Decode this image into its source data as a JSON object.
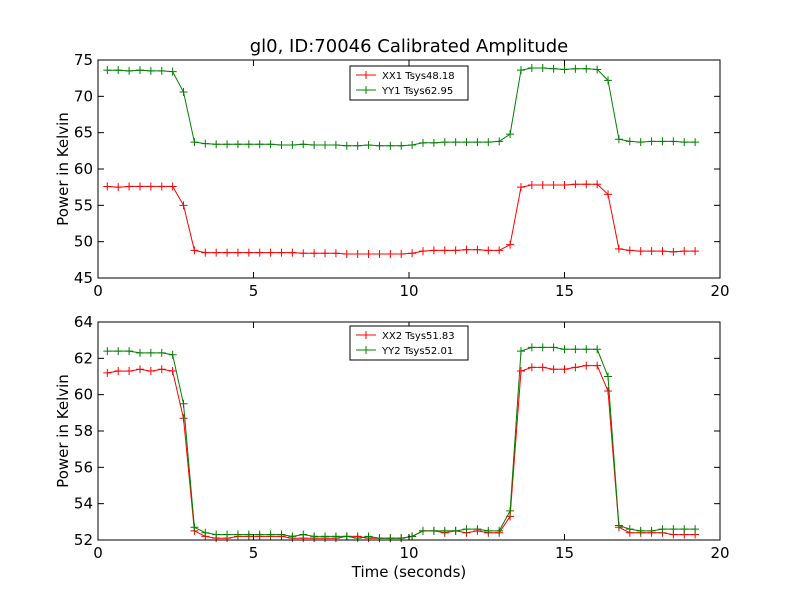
{
  "chart_data": [
    {
      "type": "line",
      "title": "gl0, ID:70046 Calibrated Amplitude",
      "xlabel": "",
      "ylabel": "Power in Kelvin",
      "xlim": [
        0,
        20
      ],
      "ylim": [
        45,
        75
      ],
      "xticks": [
        0,
        5,
        10,
        15,
        20
      ],
      "yticks": [
        45,
        50,
        55,
        60,
        65,
        70,
        75
      ],
      "legend_position": "top-center",
      "x": [
        0.3,
        0.65,
        1.0,
        1.35,
        1.7,
        2.05,
        2.4,
        2.75,
        3.1,
        3.45,
        3.8,
        4.15,
        4.5,
        4.85,
        5.2,
        5.55,
        5.9,
        6.25,
        6.6,
        6.95,
        7.3,
        7.65,
        8.0,
        8.35,
        8.7,
        9.05,
        9.4,
        9.75,
        10.1,
        10.45,
        10.8,
        11.15,
        11.5,
        11.85,
        12.2,
        12.55,
        12.9,
        13.25,
        13.6,
        13.95,
        14.3,
        14.65,
        15.0,
        15.35,
        15.7,
        16.05,
        16.4,
        16.75,
        17.1,
        17.45,
        17.8,
        18.15,
        18.5,
        18.85,
        19.2
      ],
      "series": [
        {
          "name": "XX1 Tsys48.18",
          "color": "#ff0000",
          "values": [
            57.6,
            57.5,
            57.6,
            57.6,
            57.6,
            57.6,
            57.6,
            55.0,
            48.8,
            48.5,
            48.5,
            48.5,
            48.5,
            48.5,
            48.5,
            48.5,
            48.5,
            48.5,
            48.4,
            48.4,
            48.4,
            48.4,
            48.3,
            48.3,
            48.3,
            48.3,
            48.3,
            48.3,
            48.4,
            48.7,
            48.8,
            48.8,
            48.8,
            48.9,
            48.9,
            48.8,
            48.8,
            49.6,
            57.5,
            57.8,
            57.8,
            57.8,
            57.8,
            57.9,
            57.9,
            57.9,
            56.5,
            49.0,
            48.8,
            48.7,
            48.7,
            48.7,
            48.6,
            48.7,
            48.7
          ]
        },
        {
          "name": "YY1 Tsys62.95",
          "color": "#008000",
          "values": [
            73.6,
            73.6,
            73.5,
            73.6,
            73.5,
            73.5,
            73.4,
            70.6,
            63.7,
            63.5,
            63.4,
            63.4,
            63.4,
            63.4,
            63.4,
            63.4,
            63.3,
            63.3,
            63.4,
            63.3,
            63.3,
            63.3,
            63.2,
            63.2,
            63.3,
            63.2,
            63.2,
            63.2,
            63.3,
            63.6,
            63.6,
            63.7,
            63.7,
            63.7,
            63.7,
            63.7,
            63.8,
            64.8,
            73.6,
            73.9,
            73.9,
            73.8,
            73.7,
            73.8,
            73.8,
            73.7,
            72.2,
            64.1,
            63.8,
            63.7,
            63.8,
            63.8,
            63.8,
            63.7,
            63.7
          ]
        }
      ]
    },
    {
      "type": "line",
      "title": "",
      "xlabel": "Time (seconds)",
      "ylabel": "Power in Kelvin",
      "xlim": [
        0,
        20
      ],
      "ylim": [
        52,
        64
      ],
      "xticks": [
        0,
        5,
        10,
        15,
        20
      ],
      "yticks": [
        52,
        54,
        56,
        58,
        60,
        62,
        64
      ],
      "legend_position": "top-center",
      "x": [
        0.3,
        0.65,
        1.0,
        1.35,
        1.7,
        2.05,
        2.4,
        2.75,
        3.1,
        3.45,
        3.8,
        4.15,
        4.5,
        4.85,
        5.2,
        5.55,
        5.9,
        6.25,
        6.6,
        6.95,
        7.3,
        7.65,
        8.0,
        8.35,
        8.7,
        9.05,
        9.4,
        9.75,
        10.1,
        10.45,
        10.8,
        11.15,
        11.5,
        11.85,
        12.2,
        12.55,
        12.9,
        13.25,
        13.6,
        13.95,
        14.3,
        14.65,
        15.0,
        15.35,
        15.7,
        16.05,
        16.4,
        16.75,
        17.1,
        17.45,
        17.8,
        18.15,
        18.5,
        18.85,
        19.2
      ],
      "series": [
        {
          "name": "XX2 Tsys51.83",
          "color": "#ff0000",
          "values": [
            61.2,
            61.3,
            61.3,
            61.4,
            61.3,
            61.4,
            61.3,
            58.7,
            52.5,
            52.2,
            52.1,
            52.1,
            52.2,
            52.2,
            52.2,
            52.2,
            52.2,
            52.1,
            52.1,
            52.1,
            52.1,
            52.1,
            52.2,
            52.2,
            52.1,
            52.1,
            52.1,
            52.1,
            52.2,
            52.5,
            52.5,
            52.4,
            52.5,
            52.4,
            52.5,
            52.4,
            52.4,
            53.3,
            61.3,
            61.5,
            61.5,
            61.4,
            61.4,
            61.5,
            61.6,
            61.6,
            60.2,
            52.7,
            52.4,
            52.4,
            52.4,
            52.4,
            52.3,
            52.3,
            52.3
          ]
        },
        {
          "name": "YY2 Tsys52.01",
          "color": "#008000",
          "values": [
            62.4,
            62.4,
            62.4,
            62.3,
            62.3,
            62.3,
            62.2,
            59.5,
            52.7,
            52.4,
            52.3,
            52.3,
            52.3,
            52.3,
            52.3,
            52.3,
            52.3,
            52.2,
            52.3,
            52.2,
            52.2,
            52.2,
            52.2,
            52.1,
            52.2,
            52.1,
            52.1,
            52.1,
            52.2,
            52.5,
            52.5,
            52.5,
            52.5,
            52.6,
            52.6,
            52.5,
            52.5,
            53.6,
            62.4,
            62.6,
            62.6,
            62.6,
            62.5,
            62.5,
            62.5,
            62.5,
            61.0,
            52.8,
            52.6,
            52.5,
            52.5,
            52.6,
            52.6,
            52.6,
            52.6
          ]
        }
      ]
    }
  ]
}
